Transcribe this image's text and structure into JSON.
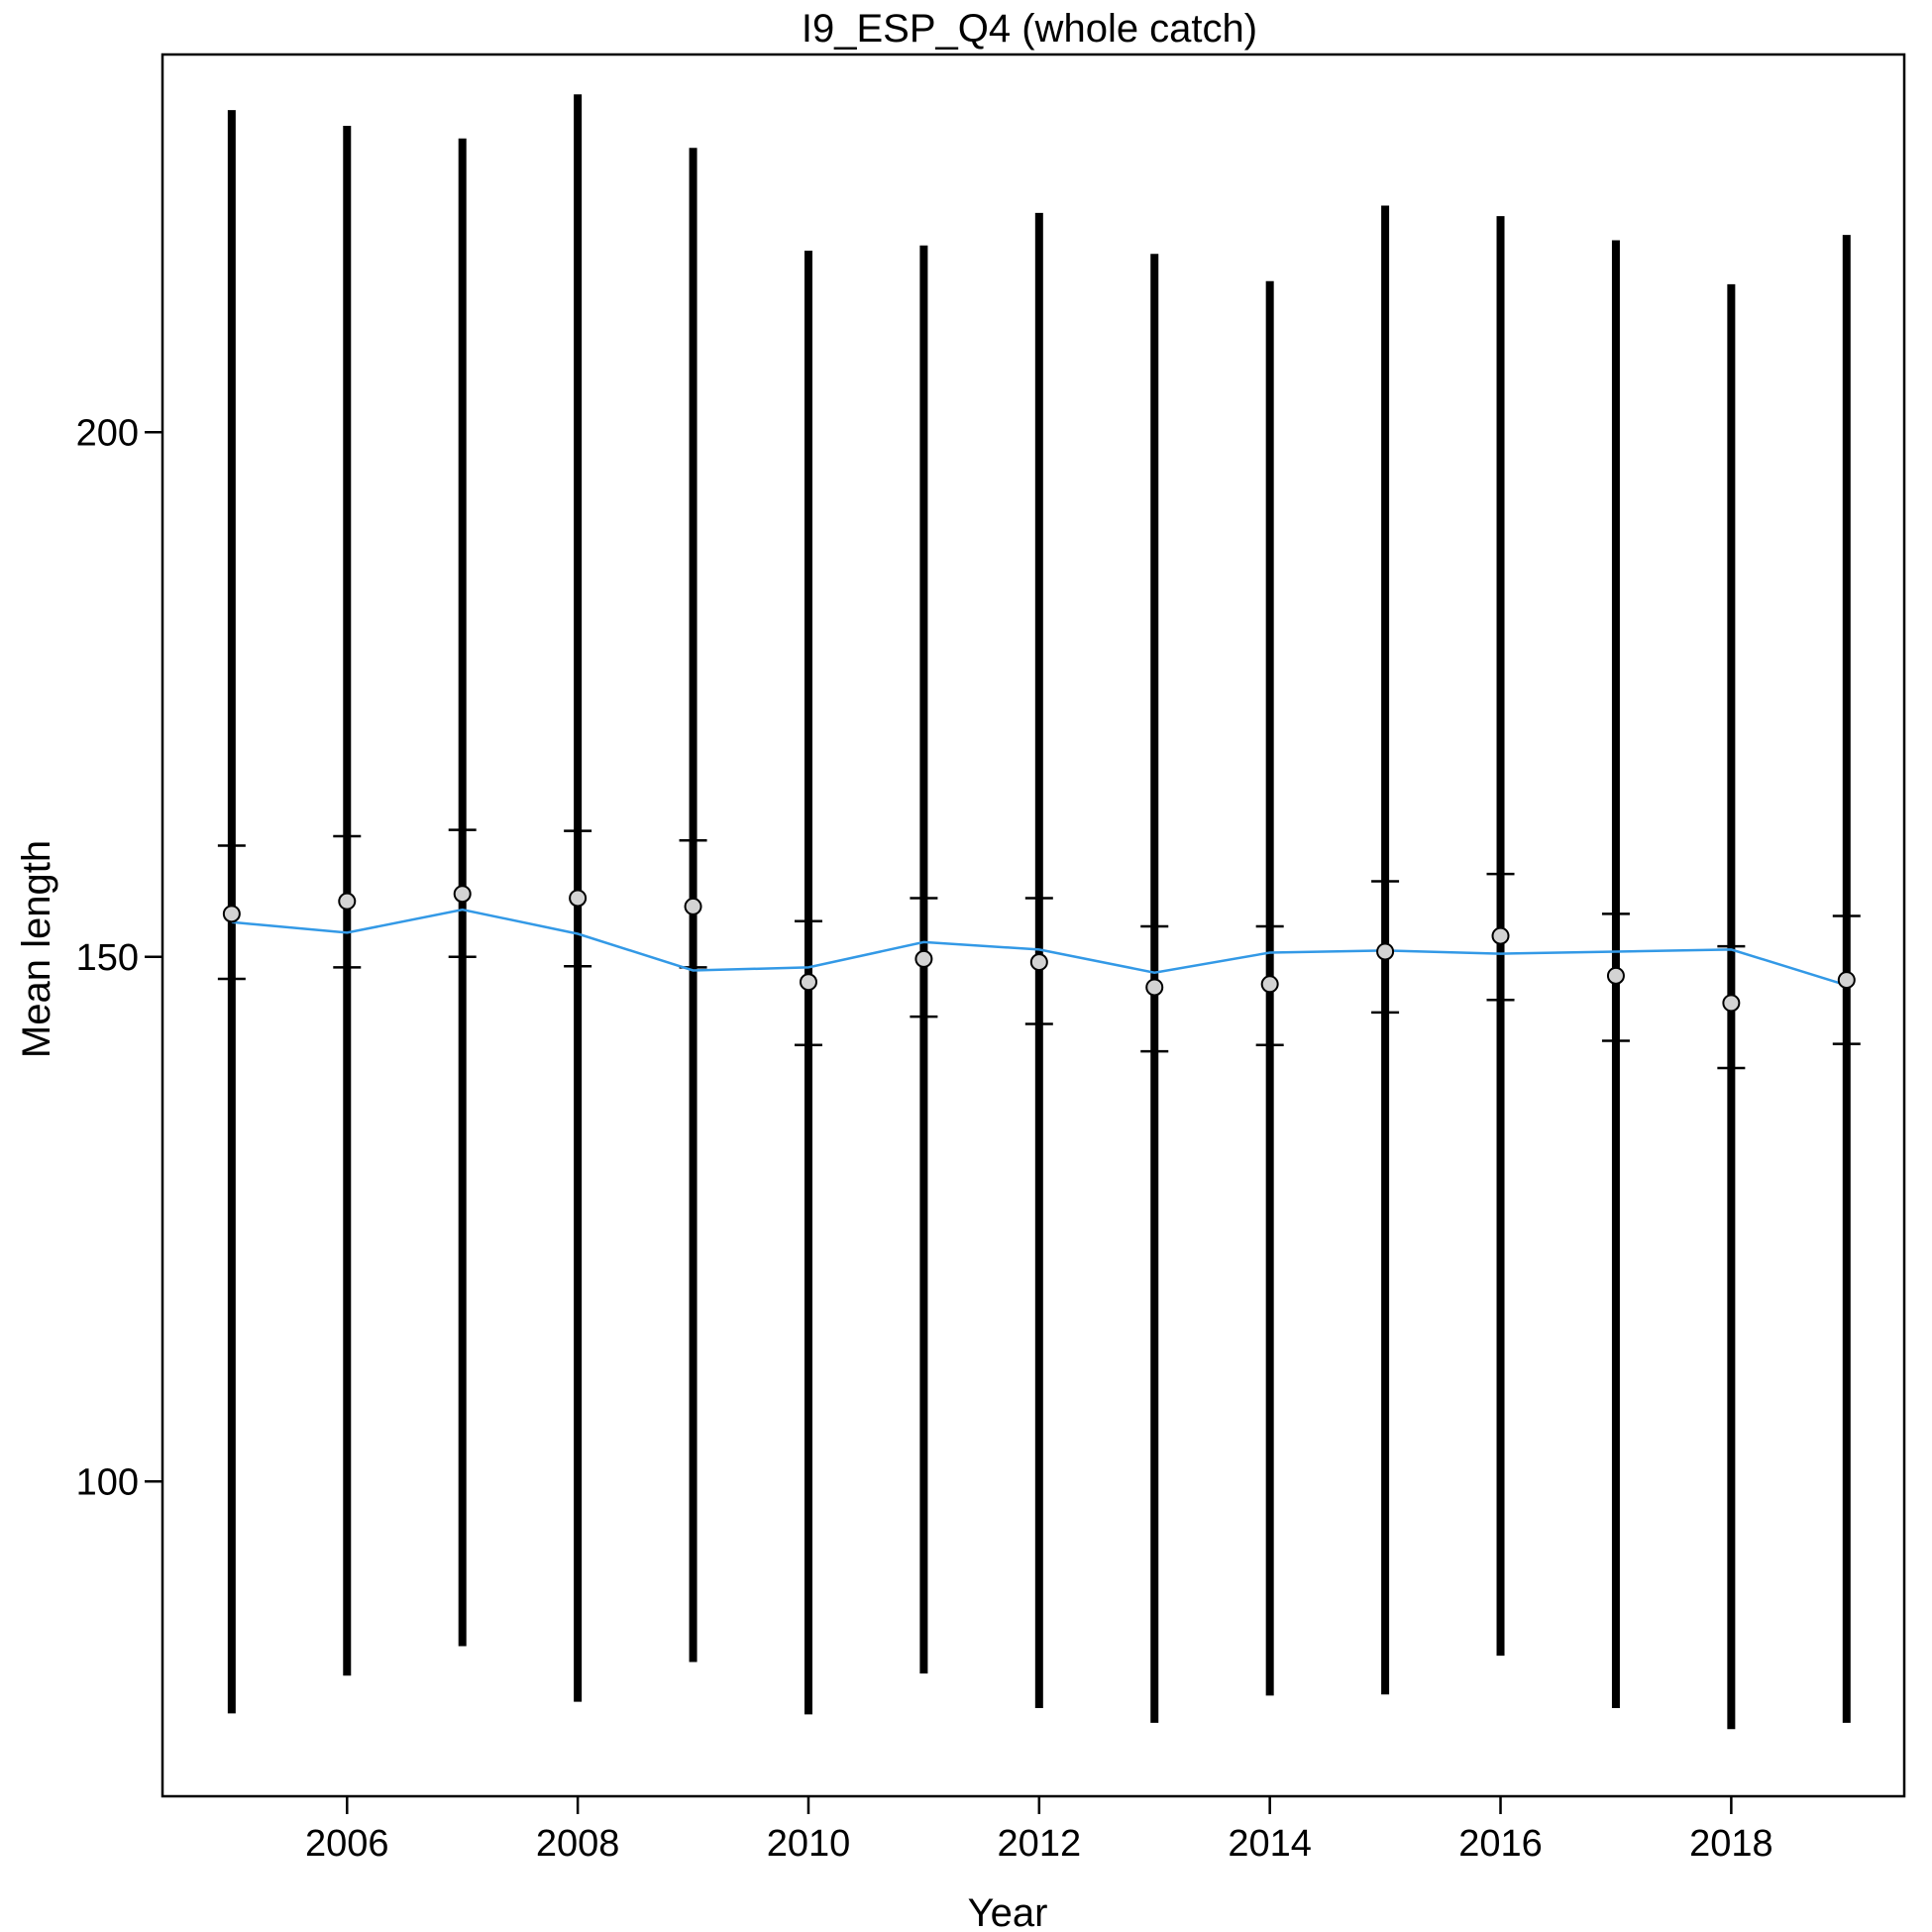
{
  "chart_data": {
    "type": "line",
    "title": "I9_ESP_Q4 (whole catch)",
    "xlabel": "Year",
    "ylabel": "Mean length",
    "x_ticks": [
      2006,
      2008,
      2010,
      2012,
      2014,
      2016,
      2018
    ],
    "y_ticks": [
      100,
      150,
      200
    ],
    "xlim": [
      2004.4,
      2019.5
    ],
    "ylim": [
      70,
      236
    ],
    "grid": false,
    "colors": {
      "fitted_line": "#3399e6",
      "point_fill": "#d3d3d3",
      "bars": "#000000",
      "frame": "#000000"
    },
    "years": [
      2005,
      2006,
      2007,
      2008,
      2009,
      2010,
      2011,
      2012,
      2013,
      2014,
      2015,
      2016,
      2017,
      2018,
      2019
    ],
    "observed_mean": [
      154.1,
      155.3,
      156.0,
      155.6,
      154.8,
      147.6,
      149.8,
      149.5,
      147.1,
      147.4,
      150.5,
      152.0,
      148.2,
      145.6,
      147.8
    ],
    "fitted_mean": [
      153.3,
      152.3,
      154.5,
      152.2,
      148.7,
      149.0,
      151.4,
      150.7,
      148.5,
      150.4,
      150.6,
      150.3,
      150.5,
      150.7,
      147.3
    ],
    "inner_interval": [
      [
        147.9,
        160.6
      ],
      [
        149.0,
        161.5
      ],
      [
        150.0,
        162.1
      ],
      [
        149.1,
        162.0
      ],
      [
        149.0,
        161.1
      ],
      [
        141.6,
        153.4
      ],
      [
        144.3,
        155.6
      ],
      [
        143.6,
        155.6
      ],
      [
        141.0,
        152.9
      ],
      [
        141.6,
        152.9
      ],
      [
        144.7,
        157.2
      ],
      [
        145.9,
        157.9
      ],
      [
        142.0,
        154.1
      ],
      [
        139.4,
        151.0
      ],
      [
        141.7,
        153.9
      ]
    ],
    "outer_interval": [
      [
        77.9,
        230.7
      ],
      [
        81.5,
        229.2
      ],
      [
        84.3,
        228.0
      ],
      [
        79.0,
        232.2
      ],
      [
        82.8,
        227.1
      ],
      [
        77.8,
        217.3
      ],
      [
        81.7,
        217.8
      ],
      [
        78.4,
        220.9
      ],
      [
        77.0,
        217.0
      ],
      [
        79.6,
        214.4
      ],
      [
        79.7,
        221.6
      ],
      [
        83.4,
        220.6
      ],
      [
        78.4,
        218.3
      ],
      [
        76.4,
        214.1
      ],
      [
        77.0,
        218.8
      ]
    ]
  }
}
